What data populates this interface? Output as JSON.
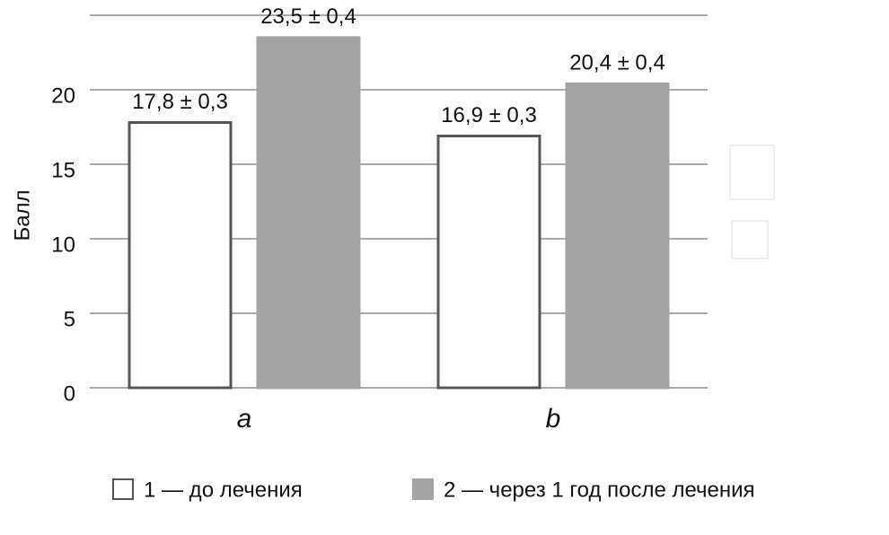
{
  "chart_data": {
    "type": "bar",
    "y_label": "Балл",
    "categories": [
      "a",
      "b"
    ],
    "series": [
      {
        "name": "1 — до лечения",
        "color": "#ffffff",
        "edge": "#555555",
        "values": [
          17.8,
          16.9
        ],
        "errors": [
          0.3,
          0.3
        ],
        "value_labels": [
          "17,8 ± 0,3",
          "16,9 ± 0,3"
        ]
      },
      {
        "name": "2 — через 1 год после лечения",
        "color": "#a3a3a3",
        "edge": "#a3a3a3",
        "values": [
          23.5,
          20.4
        ],
        "errors": [
          0.4,
          0.4
        ],
        "value_labels": [
          "23,5 ± 0,4",
          "20,4 ± 0,4"
        ]
      }
    ],
    "ylim": [
      0,
      25
    ],
    "yticks": [
      0,
      5,
      10,
      15,
      20
    ],
    "grid": true
  }
}
